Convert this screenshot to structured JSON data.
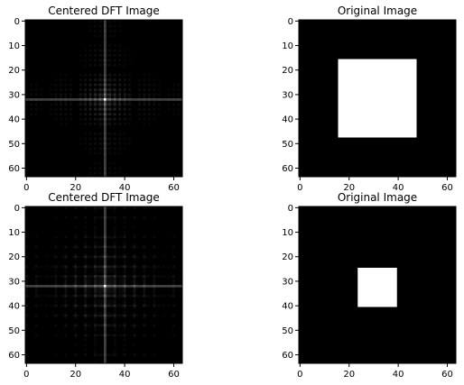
{
  "colors": {
    "background": "#ffffff",
    "image_background": "#000000",
    "foreground": "#ffffff",
    "axis": "#000000"
  },
  "chart_data": [
    {
      "type": "heatmap",
      "title": "Centered DFT Image",
      "colormap": "gray",
      "image_shape": [
        64,
        64
      ],
      "xlim": [
        0,
        63
      ],
      "ylim": [
        63,
        0
      ],
      "xticks": [
        "0",
        "20",
        "40",
        "60"
      ],
      "yticks": [
        "0",
        "10",
        "20",
        "30",
        "40",
        "50",
        "60"
      ],
      "content": {
        "kind": "dft_magnitude",
        "center": [
          32,
          32
        ],
        "period": 2,
        "spread": 0.8
      }
    },
    {
      "type": "heatmap",
      "title": "Original Image",
      "colormap": "gray",
      "image_shape": [
        64,
        64
      ],
      "xlim": [
        0,
        63
      ],
      "ylim": [
        63,
        0
      ],
      "xticks": [
        "0",
        "20",
        "40",
        "60"
      ],
      "yticks": [
        "0",
        "10",
        "20",
        "30",
        "40",
        "50",
        "60"
      ],
      "content": {
        "kind": "white_square",
        "x_range": [
          16,
          48
        ],
        "y_range": [
          16,
          48
        ]
      }
    },
    {
      "type": "heatmap",
      "title": "Centered DFT Image",
      "colormap": "gray",
      "image_shape": [
        64,
        64
      ],
      "xlim": [
        0,
        63
      ],
      "ylim": [
        63,
        0
      ],
      "xticks": [
        "0",
        "20",
        "40",
        "60"
      ],
      "yticks": [
        "0",
        "10",
        "20",
        "30",
        "40",
        "50",
        "60"
      ],
      "content": {
        "kind": "dft_magnitude",
        "center": [
          32,
          32
        ],
        "period": 4,
        "spread": 2.5
      }
    },
    {
      "type": "heatmap",
      "title": "Original Image",
      "colormap": "gray",
      "image_shape": [
        64,
        64
      ],
      "xlim": [
        0,
        63
      ],
      "ylim": [
        63,
        0
      ],
      "xticks": [
        "0",
        "20",
        "40",
        "60"
      ],
      "yticks": [
        "0",
        "10",
        "20",
        "30",
        "40",
        "50",
        "60"
      ],
      "content": {
        "kind": "white_square",
        "x_range": [
          24,
          40
        ],
        "y_range": [
          25,
          41
        ]
      }
    }
  ]
}
